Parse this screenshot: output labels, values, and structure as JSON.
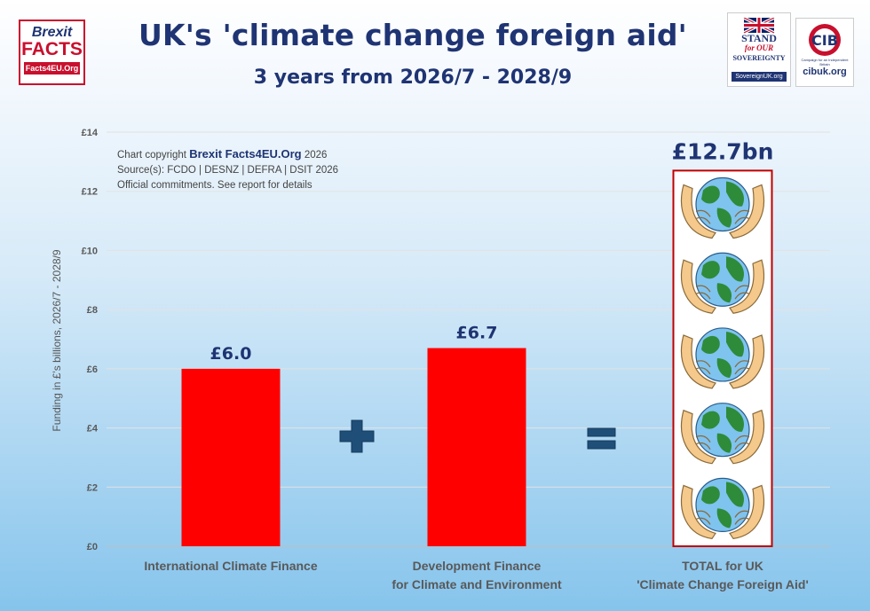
{
  "header": {
    "title": "UK's 'climate change foreign aid'",
    "subtitle": "3 years from 2026/7 - 2028/9"
  },
  "logos": {
    "brexit_facts": {
      "line1": "Brexit",
      "line2": "FACTS",
      "url": "Facts4EU.Org"
    },
    "stand": {
      "line1": "STAND",
      "line2": "for OUR",
      "line3": "SOVEREIGNTY",
      "url": "SovereignUK.org"
    },
    "cib": {
      "mark": "CIB",
      "tagline": "Campaign for an Independent Britain",
      "url": "cibuk.org"
    }
  },
  "credit": {
    "prefix": "Chart copyright",
    "brand": "Brexit Facts4EU.Org",
    "year": "2026",
    "sources": "Source(s): FCDO | DESNZ | DEFRA | DSIT 2026",
    "note": "Official commitments. See report for details"
  },
  "colors": {
    "bar": "#ff0000",
    "title": "#1f3473",
    "operator": "#1f4e79",
    "total_border": "#c00000"
  },
  "icons": {
    "plus": "plus-icon",
    "equals": "equals-icon",
    "globe": "globe-in-hands-icon"
  },
  "chart_data": {
    "type": "bar",
    "categories": [
      [
        "International Climate Finance"
      ],
      [
        "Development Finance",
        "for Climate and Environment"
      ],
      [
        "TOTAL for UK",
        "'Climate Change Foreign Aid'"
      ]
    ],
    "values": [
      6.0,
      6.7,
      12.7
    ],
    "data_labels": [
      "£6.0",
      "£6.7",
      "£12.7bn"
    ],
    "title": "UK's 'climate change foreign aid'",
    "subtitle": "3 years from 2026/7 - 2028/9",
    "xlabel": "",
    "ylabel": "Funding in £'s billions, 2026/7 - 2028/9",
    "ylim": [
      0,
      14
    ],
    "yticks": [
      0,
      2,
      4,
      6,
      8,
      10,
      12,
      14
    ],
    "ytick_labels": [
      "£0",
      "£2",
      "£4",
      "£6",
      "£8",
      "£10",
      "£12",
      "£14"
    ],
    "grid": true,
    "legend": "none",
    "total_bar_fill": "pictogram of five globes held in hands"
  }
}
